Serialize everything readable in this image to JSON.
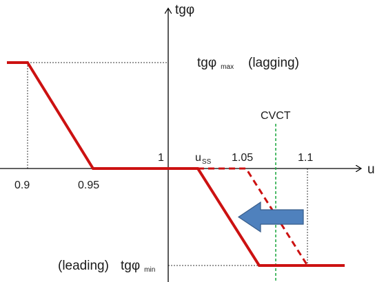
{
  "axes": {
    "y_label": "tgφ",
    "x_label": "u"
  },
  "labels": {
    "tg_max_main": "tgφ",
    "tg_max_sub": "max",
    "lagging": "(lagging)",
    "tg_min_main": "tgφ",
    "tg_min_sub": "min",
    "leading": "(leading)",
    "cvct": "CVCT",
    "u_ss_main": "u",
    "u_ss_sub": "SS"
  },
  "ticks": {
    "t090": "0.9",
    "t095": "0.95",
    "t1": "1",
    "t105": "1.05",
    "t11": "1.1"
  },
  "colors": {
    "curve": "#cc1111",
    "axis": "#000000",
    "guide": "#333333",
    "cvct_line": "#22aa44",
    "arrow": "#4f81bd",
    "arrow_edge": "#385d8a"
  },
  "shift_arrow_direction": "left"
}
